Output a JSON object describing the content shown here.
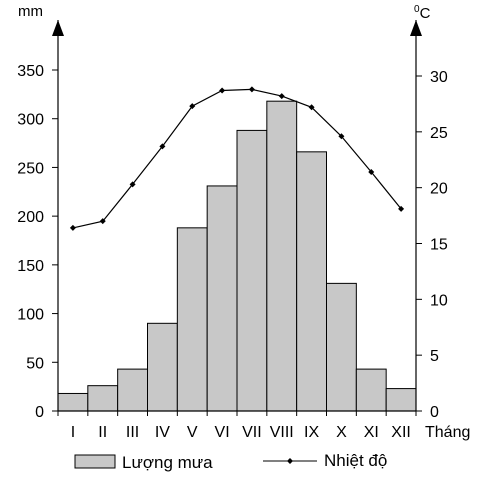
{
  "chart_data": {
    "type": "bar+line",
    "categories": [
      "I",
      "II",
      "III",
      "IV",
      "V",
      "VI",
      "VII",
      "VIII",
      "IX",
      "X",
      "XI",
      "XII"
    ],
    "xlabel": "Tháng",
    "y_left": {
      "unit": "mm",
      "ticks": [
        0,
        50,
        100,
        150,
        200,
        250,
        300,
        350
      ],
      "range": [
        0,
        350
      ]
    },
    "y_right": {
      "unit": "0C",
      "unit_base": "C",
      "unit_sup": "0",
      "ticks": [
        0,
        5,
        10,
        15,
        20,
        25,
        30
      ],
      "range": [
        0,
        30
      ]
    },
    "series": [
      {
        "name": "Lượng mưa",
        "type": "bar",
        "axis": "left",
        "color": "#c8c8c8",
        "values": [
          18,
          26,
          43,
          90,
          188,
          231,
          288,
          318,
          266,
          131,
          43,
          23
        ]
      },
      {
        "name": "Nhiệt độ",
        "type": "line",
        "axis": "right",
        "color": "#000000",
        "values": [
          16.4,
          17.0,
          20.3,
          23.7,
          27.3,
          28.7,
          28.8,
          28.2,
          27.2,
          24.6,
          21.4,
          18.1
        ]
      }
    ],
    "legend_position": "bottom",
    "grid": false
  }
}
